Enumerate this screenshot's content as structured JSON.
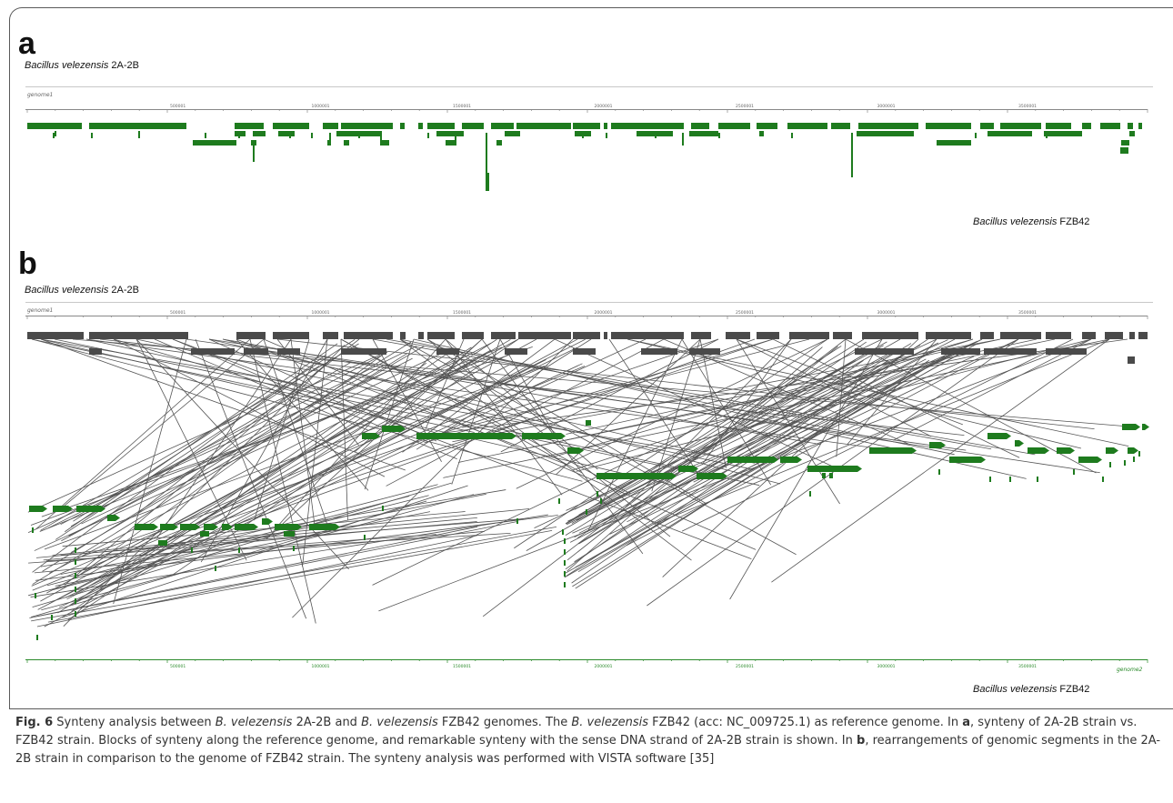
{
  "panels": {
    "a": {
      "letter": "a",
      "top_species_name": "Bacillus velezensis",
      "top_species_strain": "2A-2B",
      "bottom_species_name": "Bacillus velezensis",
      "bottom_species_strain": "FZB42",
      "axis_label": "genome1",
      "ticks": [
        "500001",
        "1000001",
        "1500001",
        "2000001",
        "2500001",
        "3000001",
        "3500001"
      ]
    },
    "b": {
      "letter": "b",
      "top_species_name": "Bacillus velezensis",
      "top_species_strain": "2A-2B",
      "bottom_species_name": "Bacillus velezensis",
      "bottom_species_strain": "FZB42",
      "top_axis_label": "genome1",
      "bottom_axis_label": "genome2",
      "ticks": [
        "500001",
        "1000001",
        "1500001",
        "2000001",
        "2500001",
        "3000001",
        "3500001"
      ]
    }
  },
  "colors": {
    "synteny_green": "#1e7b1e",
    "rearranged_gray": "#4a4a4a",
    "link_line": "#555555"
  },
  "caption": {
    "fig_label": "Fig. 6",
    "t1": " Synteny analysis between ",
    "i1": "B. velezensis",
    "t2": " 2A-2B and ",
    "i2": "B. velezensis",
    "t3": " FZB42 genomes. The ",
    "i3": "B. velezensis",
    "t4": " FZB42 (acc: NC_009725.1) as reference genome. In ",
    "b1": "a",
    "t5": ", synteny of 2A-2B strain vs. FZB42 strain. Blocks of synteny along the reference genome, and remarkable synteny with the sense DNA strand of 2A-2B strain is shown. In ",
    "b2": "b",
    "t6": ", rearrangements of genomic segments in the 2A-2B strain in comparison to the genome of FZB42 strain. The synteny analysis was performed with VISTA software [35]"
  }
}
